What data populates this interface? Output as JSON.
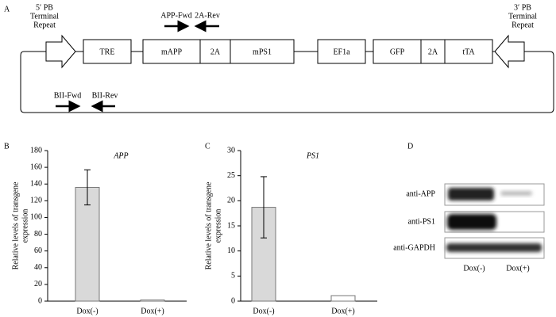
{
  "panels": [
    "A",
    "B",
    "C",
    "D"
  ],
  "diagram": {
    "left_repeat": [
      "5′ PB",
      "Terminal",
      "Repeat"
    ],
    "right_repeat": [
      "3′ PB",
      "Terminal",
      "Repeat"
    ],
    "elements": [
      "TRE",
      "mAPP",
      "2A",
      "mPS1",
      "EF1a",
      "GFP",
      "2A",
      "tTA"
    ],
    "primers": [
      "APP-Fwd",
      "2A-Rev",
      "BII-Fwd",
      "BII-Rev"
    ]
  },
  "chart_data": [
    {
      "type": "bar",
      "title": "APP",
      "ylabel": [
        "Relative levels of transgene",
        "expression"
      ],
      "categories": [
        "Dox(-)",
        "Dox(+)"
      ],
      "values": [
        136,
        1.5
      ],
      "errors": [
        21,
        null
      ],
      "colors": [
        "#d9d9d9",
        "#ffffff"
      ],
      "ylim": [
        0,
        180
      ],
      "yticks": [
        0,
        20,
        40,
        60,
        80,
        100,
        120,
        140,
        160,
        180
      ]
    },
    {
      "type": "bar",
      "title": "PS1",
      "ylabel": [
        "Relative levels of transgene",
        "expression"
      ],
      "categories": [
        "Dox(-)",
        "Dox(+)"
      ],
      "values": [
        18.7,
        1.1
      ],
      "errors": [
        6.1,
        null
      ],
      "colors": [
        "#d9d9d9",
        "#ffffff"
      ],
      "ylim": [
        0,
        30
      ],
      "yticks": [
        0,
        5,
        10,
        15,
        20,
        25,
        30
      ]
    }
  ],
  "blot": {
    "rows": [
      "anti-APP",
      "anti-PS1",
      "anti-GAPDH"
    ],
    "lanes": [
      "Dox(-)",
      "Dox(+)"
    ]
  }
}
